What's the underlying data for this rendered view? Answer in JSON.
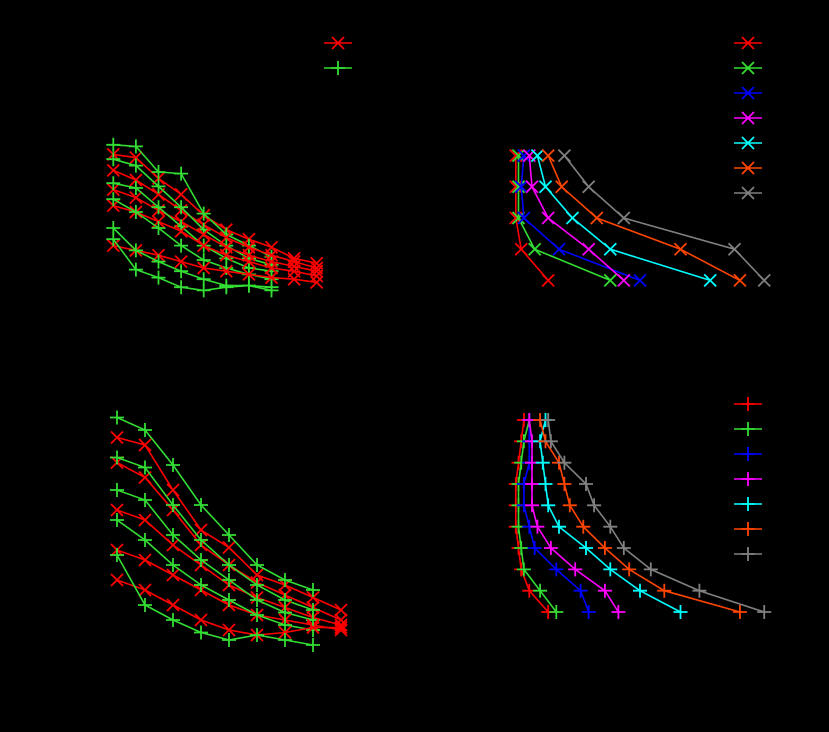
{
  "chart_data": [
    {
      "type": "line",
      "xlim": [
        0.5,
        10.5
      ],
      "ylim": [
        0,
        100
      ],
      "x": [
        1,
        2,
        3,
        4,
        5,
        6,
        7,
        8,
        9,
        10
      ],
      "series": [
        {
          "color": "#ff0000",
          "marker": "x",
          "values": [
            91,
            89,
            76,
            66,
            53,
            44,
            38,
            33,
            26,
            23
          ]
        },
        {
          "color": "#33dd33",
          "marker": "+",
          "values": [
            97,
            96,
            80,
            79,
            54,
            41,
            34,
            27,
            null,
            null
          ]
        },
        {
          "color": "#ff0000",
          "marker": "x",
          "values": [
            81,
            75,
            66,
            56,
            47,
            39,
            33,
            28,
            24,
            20
          ]
        },
        {
          "color": "#33dd33",
          "marker": "+",
          "values": [
            88,
            84,
            71,
            58,
            44,
            34,
            26,
            22,
            null,
            null
          ]
        },
        {
          "color": "#ff0000",
          "marker": "x",
          "values": [
            69,
            64,
            56,
            49,
            41,
            33,
            28,
            24,
            21,
            18
          ]
        },
        {
          "color": "#33dd33",
          "marker": "+",
          "values": [
            73,
            70,
            58,
            46,
            34,
            26,
            20,
            18,
            null,
            null
          ]
        },
        {
          "color": "#ff0000",
          "marker": "x",
          "values": [
            59,
            55,
            49,
            43,
            34,
            28,
            24,
            20,
            18,
            15
          ]
        },
        {
          "color": "#33dd33",
          "marker": "+",
          "values": [
            63,
            55,
            45,
            34,
            25,
            20,
            16,
            13,
            null,
            null
          ]
        },
        {
          "color": "#ff0000",
          "marker": "x",
          "values": [
            34,
            31,
            28,
            24,
            20,
            18,
            16,
            14,
            13,
            11
          ]
        },
        {
          "color": "#33dd33",
          "marker": "+",
          "values": [
            45,
            31,
            24,
            18,
            13,
            9,
            9,
            8,
            null,
            null
          ]
        },
        {
          "color": "#33dd33",
          "marker": "+",
          "values": [
            38,
            19,
            14,
            8,
            6,
            8,
            9,
            6,
            null,
            null
          ]
        }
      ],
      "legend": [
        {
          "color": "#ff0000",
          "marker": "x"
        },
        {
          "color": "#33dd33",
          "marker": "+"
        }
      ]
    },
    {
      "type": "line",
      "xlim": [
        0,
        100
      ],
      "ylim": [
        0.5,
        5.5
      ],
      "series": [
        {
          "color": "#ff0000",
          "marker": "x",
          "x": [
            4,
            4,
            4,
            6,
            16
          ],
          "values": [
            5,
            4,
            3,
            2,
            1
          ]
        },
        {
          "color": "#33dd33",
          "marker": "x",
          "x": [
            5,
            5,
            5,
            11,
            39
          ],
          "values": [
            5,
            4,
            3,
            2,
            1
          ]
        },
        {
          "color": "#0000ff",
          "marker": "x",
          "x": [
            7,
            6,
            7,
            20,
            50
          ],
          "values": [
            5,
            4,
            3,
            2,
            1
          ]
        },
        {
          "color": "#ff00ff",
          "marker": "x",
          "x": [
            9,
            10,
            16,
            31,
            44
          ],
          "values": [
            5,
            4,
            3,
            2,
            1
          ]
        },
        {
          "color": "#00ffff",
          "marker": "x",
          "x": [
            12,
            15,
            25,
            39,
            76
          ],
          "values": [
            5,
            4,
            3,
            2,
            1
          ]
        },
        {
          "color": "#ff4500",
          "marker": "x",
          "x": [
            16,
            21,
            34,
            65,
            87
          ],
          "values": [
            5,
            4,
            3,
            2,
            1
          ]
        },
        {
          "color": "#808080",
          "marker": "x",
          "x": [
            22,
            31,
            44,
            85,
            96
          ],
          "values": [
            5,
            4,
            3,
            2,
            1
          ]
        }
      ]
    },
    {
      "type": "line",
      "xlim": [
        0.5,
        9.5
      ],
      "ylim": [
        0,
        100
      ],
      "x": [
        1,
        2,
        3,
        4,
        5,
        6,
        7,
        8,
        9
      ],
      "series": [
        {
          "color": "#ff0000",
          "marker": "x",
          "values": [
            89,
            86,
            68,
            52,
            45,
            34,
            30,
            25,
            20
          ]
        },
        {
          "color": "#33dd33",
          "marker": "+",
          "values": [
            97,
            92,
            78,
            62,
            50,
            38,
            32,
            28,
            null
          ]
        },
        {
          "color": "#ff0000",
          "marker": "x",
          "values": [
            79,
            73,
            60,
            46,
            38,
            31,
            26,
            21,
            16
          ]
        },
        {
          "color": "#33dd33",
          "marker": "+",
          "values": [
            81,
            77,
            62,
            48,
            38,
            30,
            24,
            20,
            null
          ]
        },
        {
          "color": "#ff0000",
          "marker": "x",
          "values": [
            60,
            56,
            46,
            38,
            30,
            25,
            21,
            17,
            14
          ]
        },
        {
          "color": "#33dd33",
          "marker": "+",
          "values": [
            68,
            64,
            50,
            40,
            32,
            24,
            19,
            16,
            null
          ]
        },
        {
          "color": "#ff0000",
          "marker": "x",
          "values": [
            44,
            40,
            34,
            28,
            22,
            18,
            16,
            14,
            12
          ]
        },
        {
          "color": "#33dd33",
          "marker": "+",
          "values": [
            56,
            48,
            38,
            30,
            24,
            18,
            14,
            12,
            null
          ]
        },
        {
          "color": "#ff0000",
          "marker": "x",
          "values": [
            32,
            28,
            22,
            16,
            12,
            10,
            11,
            13,
            13
          ]
        },
        {
          "color": "#33dd33",
          "marker": "+",
          "values": [
            42,
            22,
            16,
            11,
            8,
            10,
            8,
            6,
            null
          ]
        }
      ]
    },
    {
      "type": "line",
      "xlim": [
        0,
        100
      ],
      "ylim": [
        0.5,
        10.5
      ],
      "series": [
        {
          "color": "#ff0000",
          "marker": "+",
          "x": [
            7,
            6,
            5,
            4,
            4,
            4,
            5,
            6,
            9,
            16
          ],
          "values": [
            10,
            9,
            8,
            7,
            6,
            5,
            4,
            3,
            2,
            1
          ]
        },
        {
          "color": "#33dd33",
          "marker": "+",
          "x": [
            9,
            7,
            6,
            5,
            5,
            5,
            6,
            7,
            13,
            19
          ],
          "values": [
            10,
            9,
            8,
            7,
            6,
            5,
            4,
            3,
            2,
            1
          ]
        },
        {
          "color": "#0000ff",
          "marker": "+",
          "x": [
            9,
            9,
            9,
            7,
            7,
            9,
            11,
            19,
            28,
            31
          ],
          "values": [
            10,
            9,
            8,
            7,
            6,
            5,
            4,
            3,
            2,
            1
          ]
        },
        {
          "color": "#ff00ff",
          "marker": "+",
          "x": [
            9,
            10,
            10,
            10,
            10,
            12,
            17,
            26,
            37,
            42
          ],
          "values": [
            10,
            9,
            8,
            7,
            6,
            5,
            4,
            3,
            2,
            1
          ]
        },
        {
          "color": "#00ffff",
          "marker": "+",
          "x": [
            15,
            13,
            14,
            15,
            16,
            20,
            30,
            39,
            50,
            65
          ],
          "values": [
            10,
            9,
            8,
            7,
            6,
            5,
            4,
            3,
            2,
            1
          ]
        },
        {
          "color": "#ff4500",
          "marker": "+",
          "x": [
            13,
            15,
            20,
            22,
            24,
            29,
            37,
            46,
            59,
            87
          ],
          "values": [
            10,
            9,
            8,
            7,
            6,
            5,
            4,
            3,
            2,
            1
          ]
        },
        {
          "color": "#808080",
          "marker": "+",
          "x": [
            16,
            17,
            22,
            30,
            33,
            39,
            44,
            54,
            72,
            96
          ],
          "values": [
            10,
            9,
            8,
            7,
            6,
            5,
            4,
            3,
            2,
            1
          ]
        }
      ]
    }
  ]
}
